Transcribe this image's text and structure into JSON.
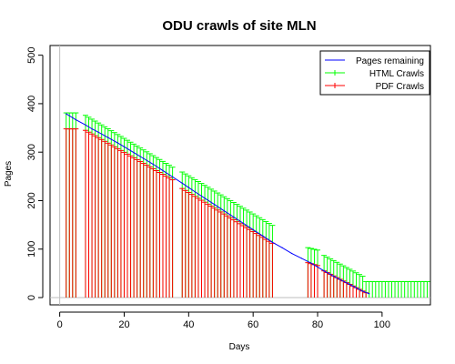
{
  "chart_data": {
    "type": "line",
    "title": "ODU crawls of site MLN",
    "xlabel": "Days",
    "ylabel": "Pages",
    "xlim": [
      -3,
      115
    ],
    "ylim": [
      -15,
      520
    ],
    "x_ticks": [
      0,
      20,
      40,
      60,
      80,
      100
    ],
    "y_ticks": [
      0,
      100,
      200,
      300,
      400,
      500
    ],
    "grid": false,
    "legend_position": "top-right",
    "series": [
      {
        "name": "Pages remaining",
        "color": "#0000ff",
        "style": "line",
        "points": [
          [
            2,
            379
          ],
          [
            4,
            371
          ],
          [
            5,
            367
          ],
          [
            8,
            356
          ],
          [
            10,
            348
          ],
          [
            12,
            341
          ],
          [
            15,
            330
          ],
          [
            18,
            319
          ],
          [
            20,
            311
          ],
          [
            23,
            299
          ],
          [
            26,
            287
          ],
          [
            29,
            275
          ],
          [
            32,
            262
          ],
          [
            35,
            249
          ],
          [
            38,
            236
          ],
          [
            40,
            227
          ],
          [
            42,
            218
          ],
          [
            45,
            205
          ],
          [
            48,
            192
          ],
          [
            51,
            179
          ],
          [
            54,
            166
          ],
          [
            57,
            153
          ],
          [
            60,
            140
          ],
          [
            63,
            127
          ],
          [
            66,
            114
          ],
          [
            69,
            103
          ],
          [
            72,
            91
          ],
          [
            75,
            81
          ],
          [
            78,
            71
          ],
          [
            80,
            63
          ],
          [
            82,
            55
          ],
          [
            85,
            44
          ],
          [
            87,
            37
          ],
          [
            90,
            27
          ],
          [
            92,
            20
          ],
          [
            94,
            13
          ],
          [
            96,
            8
          ]
        ]
      },
      {
        "name": "HTML Crawls",
        "color": "#00ff00",
        "style": "impulse",
        "groups": [
          {
            "x_start": 2,
            "x_end": 5,
            "step": 1,
            "y_start": 381,
            "y_end": 381
          },
          {
            "x_start": 8,
            "x_end": 35,
            "step": 1,
            "y_start": 376,
            "y_end": 269
          },
          {
            "x_start": 38,
            "x_end": 66,
            "step": 1,
            "y_start": 259,
            "y_end": 149
          },
          {
            "x_start": 77,
            "x_end": 80,
            "step": 1,
            "y_start": 103,
            "y_end": 98
          },
          {
            "x_start": 82,
            "x_end": 94,
            "step": 1,
            "y_start": 87,
            "y_end": 44
          },
          {
            "x_start": 95,
            "x_end": 114,
            "step": 1,
            "y_start": 33,
            "y_end": 33
          }
        ]
      },
      {
        "name": "PDF Crawls",
        "color": "#ff0000",
        "style": "impulse",
        "groups": [
          {
            "x_start": 2,
            "x_end": 5,
            "step": 1,
            "y_start": 348,
            "y_end": 348
          },
          {
            "x_start": 8,
            "x_end": 35,
            "step": 1,
            "y_start": 345,
            "y_end": 243
          },
          {
            "x_start": 38,
            "x_end": 66,
            "step": 1,
            "y_start": 225,
            "y_end": 112
          },
          {
            "x_start": 77,
            "x_end": 80,
            "step": 1,
            "y_start": 72,
            "y_end": 66
          },
          {
            "x_start": 82,
            "x_end": 95,
            "step": 1,
            "y_start": 55,
            "y_end": 10
          }
        ]
      }
    ]
  }
}
